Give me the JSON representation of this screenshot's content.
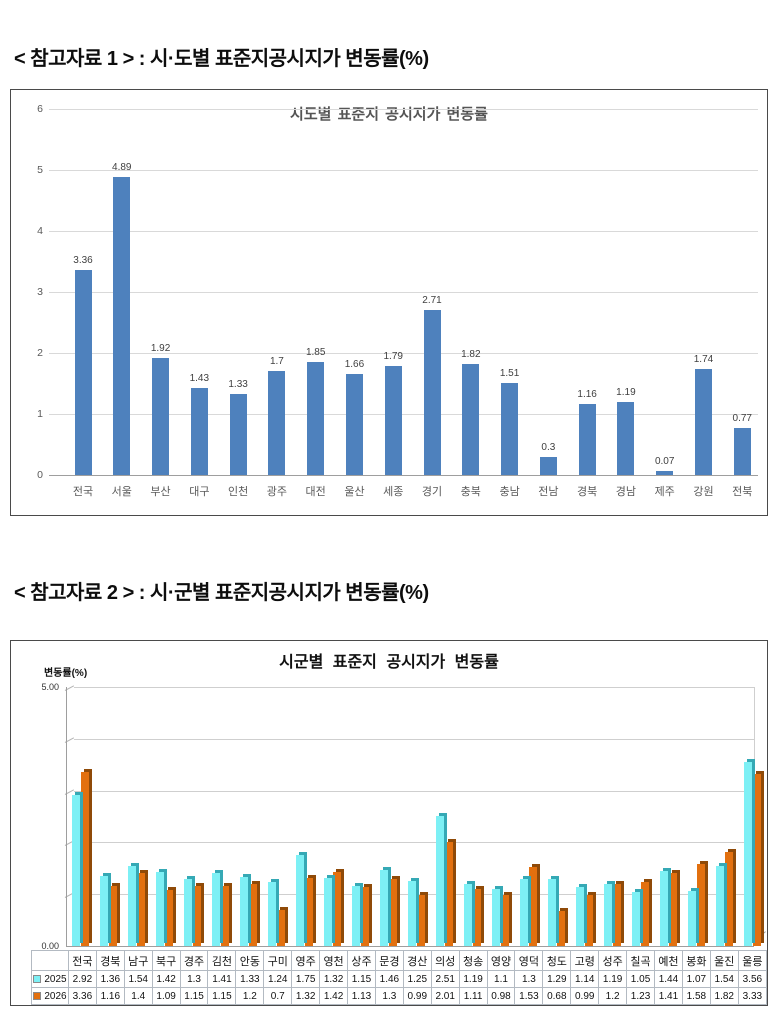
{
  "page": {
    "heading1": "< 참고자료 1 > : 시·도별 표준지공시지가 변동률(%)",
    "heading2": "< 참고자료 2 > : 시·군별 표준지공시지가 변동률(%)"
  },
  "chart_data": [
    {
      "type": "bar",
      "title": "시도별 표준지 공시지가 변동률",
      "categories": [
        "전국",
        "서울",
        "부산",
        "대구",
        "인천",
        "광주",
        "대전",
        "울산",
        "세종",
        "경기",
        "충북",
        "충남",
        "전남",
        "경북",
        "경남",
        "제주",
        "강원",
        "전북"
      ],
      "values": [
        3.36,
        4.89,
        1.92,
        1.43,
        1.33,
        1.7,
        1.85,
        1.66,
        1.79,
        2.71,
        1.82,
        1.51,
        0.3,
        1.16,
        1.19,
        0.07,
        1.74,
        0.77
      ],
      "xlabel": "",
      "ylabel": "",
      "ylim": [
        0,
        6
      ],
      "yticks": [
        0,
        1,
        2,
        3,
        4,
        5,
        6
      ],
      "grid": true,
      "value_labels": true,
      "bar_color": "#4e81bd",
      "legend_position": "none"
    },
    {
      "type": "bar",
      "title": "시군별 표준지 공시지가 변동률",
      "ylabel": "변동률(%)",
      "xlabel": "",
      "categories": [
        "전국",
        "경북",
        "남구",
        "북구",
        "경주",
        "김천",
        "안동",
        "구미",
        "영주",
        "영천",
        "상주",
        "문경",
        "경산",
        "의성",
        "청송",
        "영양",
        "영덕",
        "청도",
        "고령",
        "성주",
        "칠곡",
        "예천",
        "봉화",
        "울진",
        "울릉"
      ],
      "series": [
        {
          "name": "2025",
          "color": "#7df0f5",
          "side_color": "#35a9b5",
          "values": [
            2.92,
            1.36,
            1.54,
            1.42,
            1.3,
            1.41,
            1.33,
            1.24,
            1.75,
            1.32,
            1.15,
            1.46,
            1.25,
            2.51,
            1.19,
            1.1,
            1.3,
            1.29,
            1.14,
            1.19,
            1.05,
            1.44,
            1.07,
            1.54,
            3.56
          ]
        },
        {
          "name": "2026",
          "color": "#e2700f",
          "side_color": "#8f4a08",
          "values": [
            3.36,
            1.16,
            1.4,
            1.09,
            1.15,
            1.15,
            1.2,
            0.7,
            1.32,
            1.42,
            1.13,
            1.3,
            0.99,
            2.01,
            1.11,
            0.98,
            1.53,
            0.68,
            0.99,
            1.2,
            1.23,
            1.41,
            1.58,
            1.82,
            3.33
          ]
        }
      ],
      "ylim": [
        0,
        5
      ],
      "ytick_labels": [
        "0.00",
        "5.00"
      ],
      "grid": true,
      "style": "3d",
      "legend_position": "data-table-left",
      "data_table": true
    }
  ]
}
